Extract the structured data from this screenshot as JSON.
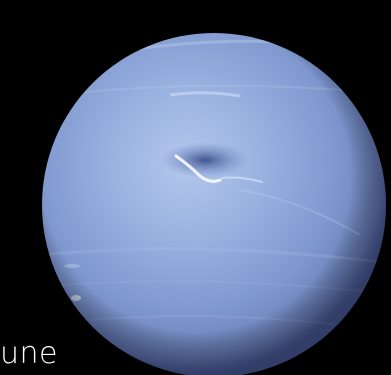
{
  "image": {
    "subject": "planet",
    "planet": {
      "body_color": "#8aa6d6",
      "highlight_color": "#a9c0e8",
      "shadow_color": "#5f73a6",
      "spot_color": "#4f62a0",
      "cloud_color": "#ffffff"
    },
    "background_color": "#000000"
  },
  "caption": {
    "text": "une"
  }
}
